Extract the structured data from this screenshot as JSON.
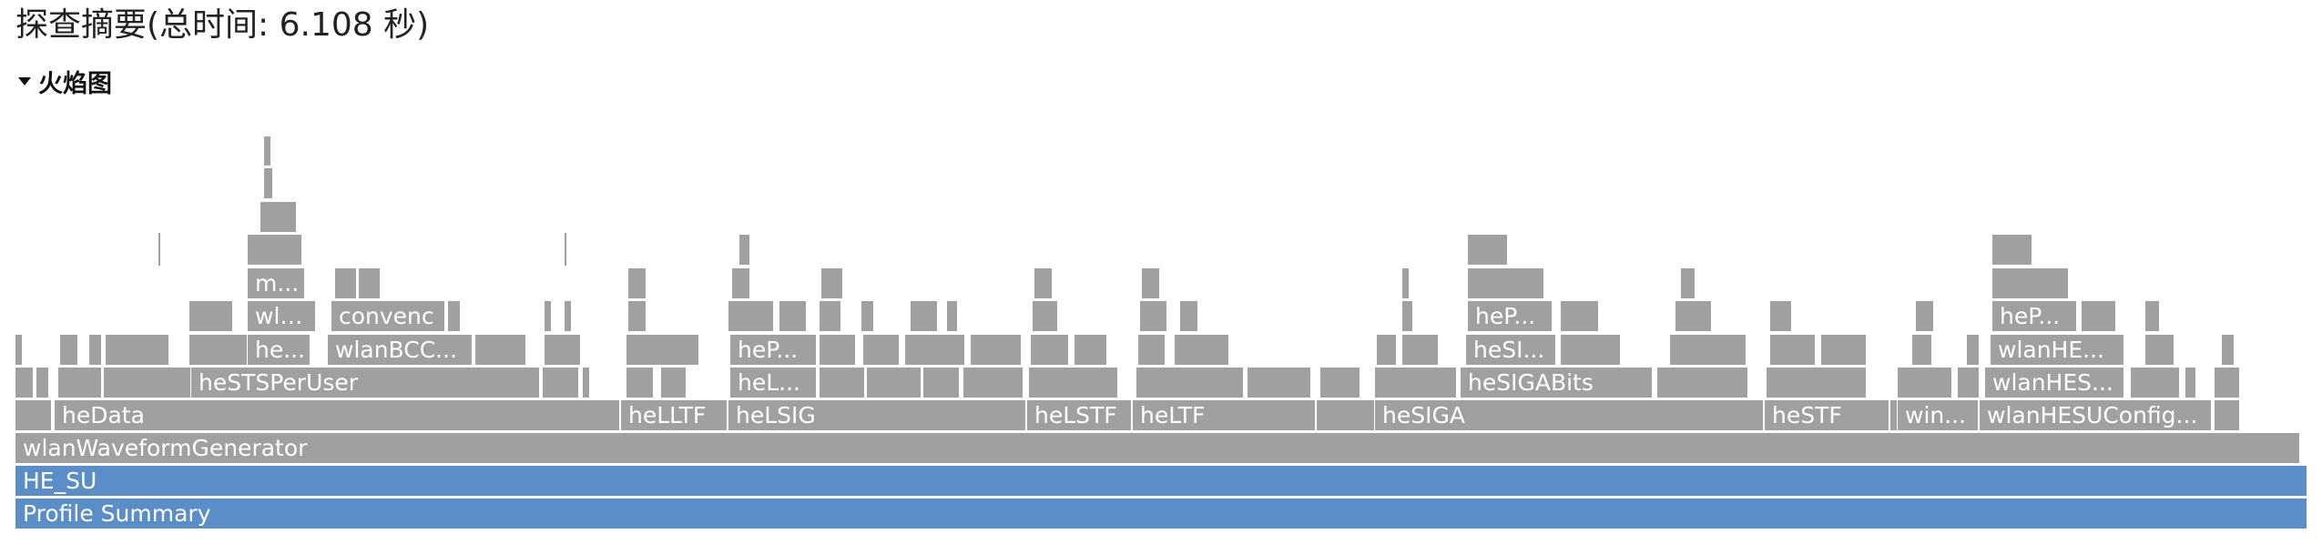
{
  "header": {
    "title": "探查摘要(总时间: 6.108 秒)"
  },
  "section": {
    "label": "火焰图",
    "expanded": true
  },
  "colors": {
    "root": "#5b8ec9",
    "frame": "#a0a0a0",
    "text": "#ffffff"
  },
  "flame": {
    "labels": {
      "root": "Profile Summary",
      "he_su": "HE_SU",
      "generator": "wlanWaveformGenerator",
      "heData": "heData",
      "heLLTF": "heLLTF",
      "heLSIG": "heLSIG",
      "heLSTF": "heLSTF",
      "heLTF": "heLTF",
      "heSIGA": "heSIGA",
      "heSTF": "heSTF",
      "win": "win...",
      "wlanHESUConfig": "wlanHESUConfig...",
      "heSTSPerUser": "heSTSPerUser",
      "he_data_l4": "he...",
      "wlanBCC": "wlanBCC...",
      "wla": "wla...",
      "convenc": "convenc",
      "m": "m...",
      "heP_lsig_l4": "heP...",
      "heL": "heL...",
      "heSIGABits": "heSIGABits",
      "heSI": "heSI...",
      "heP_siga": "heP...",
      "wlanHES": "wlanHES...",
      "wlanHE": "wlanHE...",
      "heP_config": "heP..."
    }
  }
}
